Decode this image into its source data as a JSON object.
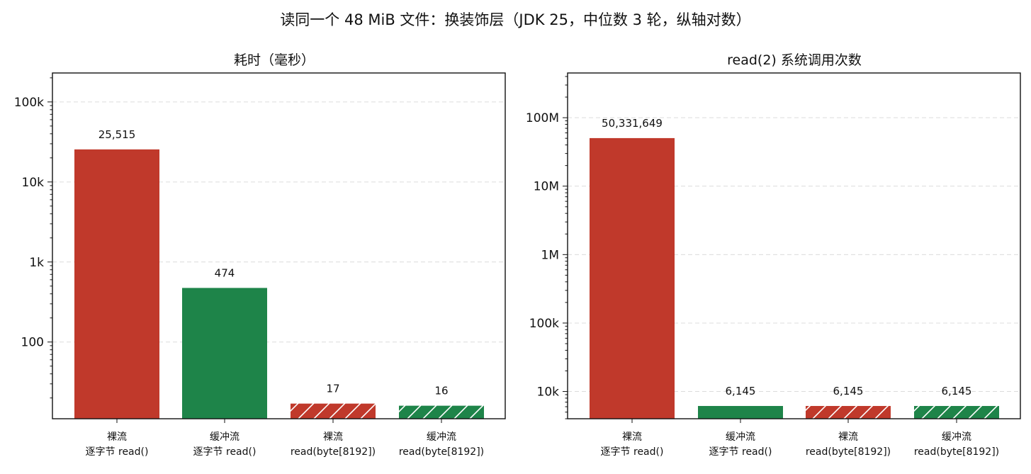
{
  "figure": {
    "title": "读同一个 48 MiB 文件：换装饰层（JDK 25，中位数 3 轮，纵轴对数）"
  },
  "colors": {
    "raw": "#c0392b",
    "buffered": "#1e8449",
    "hatch": "#ffffff"
  },
  "chart_data": [
    {
      "type": "bar",
      "title": "耗时（毫秒）",
      "yscale": "log",
      "ylim": [
        11,
        230000
      ],
      "grid": true,
      "categories": [
        [
          "裸流",
          "逐字节 read()"
        ],
        [
          "缓冲流",
          "逐字节 read()"
        ],
        [
          "裸流",
          "read(byte[8192])"
        ],
        [
          "缓冲流",
          "read(byte[8192])"
        ]
      ],
      "values": [
        25515,
        474,
        17,
        16
      ],
      "value_labels": [
        "25,515",
        "474",
        "17",
        "16"
      ],
      "bar_styles": [
        {
          "color": "raw",
          "hatched": false
        },
        {
          "color": "buffered",
          "hatched": false
        },
        {
          "color": "raw",
          "hatched": true
        },
        {
          "color": "buffered",
          "hatched": true
        }
      ],
      "yticks": [
        100,
        1000,
        10000,
        100000
      ],
      "ytick_labels": [
        "100",
        "1k",
        "10k",
        "100k"
      ]
    },
    {
      "type": "bar",
      "title": "read(2) 系统调用次数",
      "yscale": "log",
      "ylim": [
        4000,
        450000000
      ],
      "grid": true,
      "categories": [
        [
          "裸流",
          "逐字节 read()"
        ],
        [
          "缓冲流",
          "逐字节 read()"
        ],
        [
          "裸流",
          "read(byte[8192])"
        ],
        [
          "缓冲流",
          "read(byte[8192])"
        ]
      ],
      "values": [
        50331649,
        6145,
        6145,
        6145
      ],
      "value_labels": [
        "50,331,649",
        "6,145",
        "6,145",
        "6,145"
      ],
      "bar_styles": [
        {
          "color": "raw",
          "hatched": false
        },
        {
          "color": "buffered",
          "hatched": false
        },
        {
          "color": "raw",
          "hatched": true
        },
        {
          "color": "buffered",
          "hatched": true
        }
      ],
      "yticks": [
        10000,
        100000,
        1000000,
        10000000,
        100000000
      ],
      "ytick_labels": [
        "10k",
        "100k",
        "1M",
        "10M",
        "100M"
      ]
    }
  ]
}
